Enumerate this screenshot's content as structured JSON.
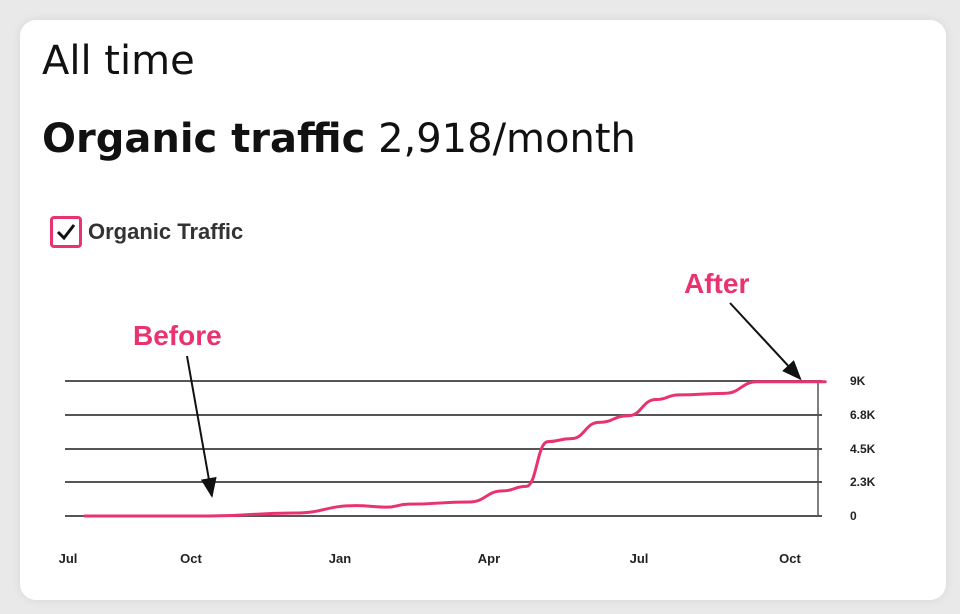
{
  "header": {
    "period": "All time",
    "metric_label": "Organic traffic",
    "metric_value": "2,918/month"
  },
  "legend": {
    "label": "Organic Traffic",
    "checked": true
  },
  "colors": {
    "series": "#e8336f",
    "annotation": "#e8336f",
    "grid": "#555555"
  },
  "chart_data": {
    "type": "line",
    "title": "",
    "xlabel": "",
    "ylabel": "",
    "x_ticks": [
      {
        "label": "Jul",
        "month": 0
      },
      {
        "label": "Oct",
        "month": 3
      },
      {
        "label": "Jan",
        "month": 6
      },
      {
        "label": "Apr",
        "month": 9
      },
      {
        "label": "Jul",
        "month": 12
      },
      {
        "label": "Oct",
        "month": 15
      }
    ],
    "y_ticks": [
      {
        "label": "0",
        "value": 0
      },
      {
        "label": "2.3K",
        "value": 2300
      },
      {
        "label": "4.5K",
        "value": 4500
      },
      {
        "label": "6.8K",
        "value": 6800
      },
      {
        "label": "9K",
        "value": 9000
      }
    ],
    "ylim": [
      0,
      9000
    ],
    "grid": true,
    "legend_position": "top-left",
    "series": [
      {
        "name": "Organic Traffic",
        "x": [
          0.41,
          3.36,
          5.07,
          6.32,
          6.94,
          7.38,
          8.6,
          9.28,
          9.74,
          10.18,
          10.64,
          11.2,
          11.78,
          12.34,
          12.79,
          13.7,
          14.35,
          15.7
        ],
        "y": [
          0,
          0,
          200,
          700,
          600,
          800,
          950,
          1700,
          2000,
          5000,
          5200,
          6300,
          6750,
          7800,
          8100,
          8200,
          8950,
          8950
        ]
      }
    ],
    "annotations": [
      {
        "text": "Before",
        "x": 3.36,
        "y": 0
      },
      {
        "text": "After",
        "x": 15.7,
        "y": 8950
      }
    ]
  }
}
